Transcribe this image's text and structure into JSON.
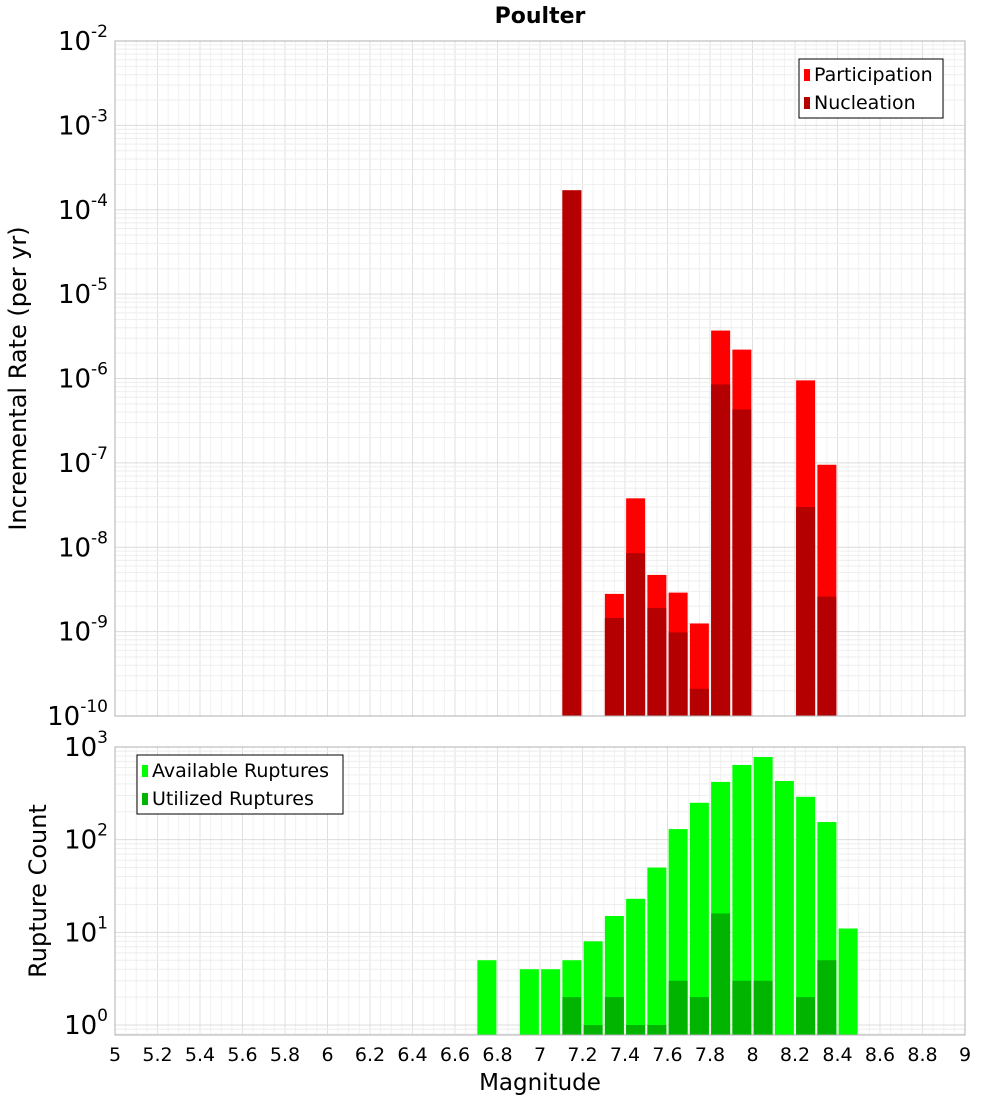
{
  "chart_data": [
    {
      "type": "bar",
      "title": "Poulter",
      "xlabel": "",
      "ylabel": "Incremental Rate (per yr)",
      "yscale": "log",
      "ylim": [
        1e-10,
        0.01
      ],
      "xlim": [
        5,
        9
      ],
      "y_tick_labels": [
        {
          "base": "10",
          "exp": "-10"
        },
        {
          "base": "10",
          "exp": "-9"
        },
        {
          "base": "10",
          "exp": "-8"
        },
        {
          "base": "10",
          "exp": "-7"
        },
        {
          "base": "10",
          "exp": "-6"
        },
        {
          "base": "10",
          "exp": "-5"
        },
        {
          "base": "10",
          "exp": "-4"
        },
        {
          "base": "10",
          "exp": "-3"
        },
        {
          "base": "10",
          "exp": "-2"
        }
      ],
      "grid": true,
      "legend_position": "top-right",
      "colors": {
        "Participation": "#ff0000",
        "Nucleation": "#b40000"
      },
      "series": [
        {
          "name": "Participation",
          "x": [
            7.15,
            7.35,
            7.45,
            7.55,
            7.65,
            7.75,
            7.85,
            7.95,
            8.25,
            8.35
          ],
          "values": [
            0.00017,
            2.8e-09,
            3.8e-08,
            4.7e-09,
            2.9e-09,
            1.25e-09,
            3.7e-06,
            2.2e-06,
            9.5e-07,
            9.5e-08
          ]
        },
        {
          "name": "Nucleation",
          "x": [
            7.15,
            7.35,
            7.45,
            7.55,
            7.65,
            7.75,
            7.85,
            7.95,
            8.25,
            8.35
          ],
          "values": [
            0.00017,
            1.45e-09,
            8.5e-09,
            1.9e-09,
            9.8e-10,
            2.1e-10,
            8.5e-07,
            4.3e-07,
            3e-08,
            2.6e-09
          ]
        }
      ]
    },
    {
      "type": "bar",
      "title": "",
      "xlabel": "Magnitude",
      "ylabel": "Rupture Count",
      "yscale": "log",
      "ylim": [
        0.78,
        1000
      ],
      "xlim": [
        5,
        9
      ],
      "x_tick_labels": [
        "5",
        "5.2",
        "5.4",
        "5.6",
        "5.8",
        "6",
        "6.2",
        "6.4",
        "6.6",
        "6.8",
        "7",
        "7.2",
        "7.4",
        "7.6",
        "7.8",
        "8",
        "8.2",
        "8.4",
        "8.6",
        "8.8",
        "9"
      ],
      "y_tick_labels": [
        {
          "base": "10",
          "exp": "0"
        },
        {
          "base": "10",
          "exp": "1"
        },
        {
          "base": "10",
          "exp": "2"
        },
        {
          "base": "10",
          "exp": "3"
        }
      ],
      "grid": true,
      "legend_position": "top-left",
      "colors": {
        "Available Ruptures": "#00ff00",
        "Utilized Ruptures": "#00b400"
      },
      "series": [
        {
          "name": "Available Ruptures",
          "x": [
            6.75,
            6.95,
            7.05,
            7.15,
            7.25,
            7.35,
            7.45,
            7.55,
            7.65,
            7.75,
            7.85,
            7.95,
            8.05,
            8.15,
            8.25,
            8.35,
            8.45
          ],
          "values": [
            5,
            4,
            4,
            5,
            8,
            15,
            23,
            50,
            130,
            250,
            420,
            640,
            780,
            430,
            290,
            155,
            11
          ]
        },
        {
          "name": "Utilized Ruptures",
          "x": [
            7.15,
            7.25,
            7.35,
            7.45,
            7.55,
            7.65,
            7.75,
            7.85,
            7.95,
            8.05,
            8.25,
            8.35
          ],
          "values": [
            2,
            1,
            2,
            1,
            1,
            3,
            2,
            16,
            3,
            3,
            2,
            5
          ]
        }
      ]
    }
  ]
}
